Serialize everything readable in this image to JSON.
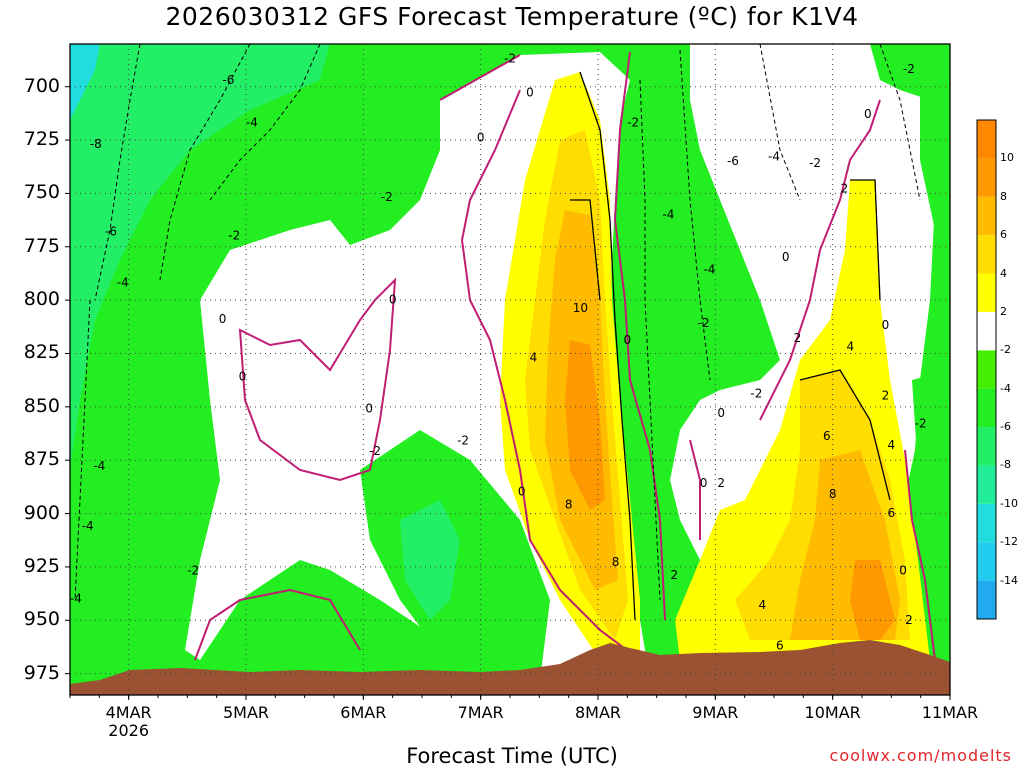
{
  "chart_data": {
    "type": "heatmap",
    "title": "2026030312 GFS Forecast Temperature (ºC) for K1V4",
    "xlabel": "Forecast Time (UTC)",
    "ylabel": "",
    "x_ticks": [
      {
        "label": "4MAR",
        "sub": "2026",
        "day": 4
      },
      {
        "label": "5MAR",
        "sub": "",
        "day": 5
      },
      {
        "label": "6MAR",
        "sub": "",
        "day": 6
      },
      {
        "label": "7MAR",
        "sub": "",
        "day": 7
      },
      {
        "label": "8MAR",
        "sub": "",
        "day": 8
      },
      {
        "label": "9MAR",
        "sub": "",
        "day": 9
      },
      {
        "label": "10MAR",
        "sub": "",
        "day": 10
      },
      {
        "label": "11MAR",
        "sub": "",
        "day": 11
      }
    ],
    "xlim": [
      3.5,
      11.0
    ],
    "y_ticks": [
      700,
      725,
      750,
      775,
      800,
      825,
      850,
      875,
      900,
      925,
      950,
      975
    ],
    "ylim": [
      680,
      985
    ],
    "y_inverted": true,
    "grid": true,
    "colorbar": {
      "levels": [
        -16,
        -14,
        -12,
        -10,
        -8,
        -6,
        -4,
        -2,
        2,
        4,
        6,
        8,
        10,
        12
      ],
      "labels": [
        "-14",
        "-12",
        "-10",
        "-8",
        "-6",
        "-4",
        "-2",
        "2",
        "4",
        "6",
        "8",
        "10"
      ],
      "colors": [
        "#22aaee",
        "#22ccee",
        "#22dddd",
        "#22ee99",
        "#22ee66",
        "#22ee22",
        "#44ee00",
        "#ffffff",
        "#ffff00",
        "#ffdd00",
        "#ffbb00",
        "#ff9900",
        "#ff8800"
      ]
    },
    "contour_labels": [
      {
        "text": "-6",
        "day": 4.85,
        "p": 697
      },
      {
        "text": "-8",
        "day": 3.72,
        "p": 727
      },
      {
        "text": "-6",
        "day": 3.85,
        "p": 768
      },
      {
        "text": "-4",
        "day": 3.95,
        "p": 792
      },
      {
        "text": "-4",
        "day": 5.05,
        "p": 717
      },
      {
        "text": "-2",
        "day": 4.9,
        "p": 770
      },
      {
        "text": "-2",
        "day": 6.2,
        "p": 752
      },
      {
        "text": "-2",
        "day": 7.25,
        "p": 687
      },
      {
        "text": "0",
        "day": 7.42,
        "p": 703
      },
      {
        "text": "0",
        "day": 7.0,
        "p": 724
      },
      {
        "text": "0",
        "day": 4.8,
        "p": 809
      },
      {
        "text": "0",
        "day": 4.97,
        "p": 836
      },
      {
        "text": "0",
        "day": 6.25,
        "p": 800
      },
      {
        "text": "0",
        "day": 6.05,
        "p": 851
      },
      {
        "text": "-2",
        "day": 6.1,
        "p": 871
      },
      {
        "text": "-2",
        "day": 6.85,
        "p": 866
      },
      {
        "text": "-4",
        "day": 3.75,
        "p": 878
      },
      {
        "text": "-4",
        "day": 3.65,
        "p": 906
      },
      {
        "text": "-4",
        "day": 3.55,
        "p": 940
      },
      {
        "text": "-2",
        "day": 4.55,
        "p": 927
      },
      {
        "text": "-2",
        "day": 8.3,
        "p": 717
      },
      {
        "text": "-4",
        "day": 8.6,
        "p": 760
      },
      {
        "text": "-4",
        "day": 8.95,
        "p": 786
      },
      {
        "text": "-6",
        "day": 9.15,
        "p": 735
      },
      {
        "text": "-4",
        "day": 9.5,
        "p": 733
      },
      {
        "text": "-2",
        "day": 9.85,
        "p": 736
      },
      {
        "text": "-2",
        "day": 10.65,
        "p": 692
      },
      {
        "text": "0",
        "day": 10.3,
        "p": 713
      },
      {
        "text": "0",
        "day": 9.6,
        "p": 780
      },
      {
        "text": "2",
        "day": 10.1,
        "p": 748
      },
      {
        "text": "10",
        "day": 7.85,
        "p": 804
      },
      {
        "text": "4",
        "day": 7.45,
        "p": 827
      },
      {
        "text": "0",
        "day": 8.25,
        "p": 819
      },
      {
        "text": "-2",
        "day": 8.9,
        "p": 811
      },
      {
        "text": "2",
        "day": 9.7,
        "p": 818
      },
      {
        "text": "4",
        "day": 10.15,
        "p": 822
      },
      {
        "text": "0",
        "day": 10.45,
        "p": 812
      },
      {
        "text": "-2",
        "day": 9.35,
        "p": 844
      },
      {
        "text": "2",
        "day": 10.45,
        "p": 845
      },
      {
        "text": "0",
        "day": 9.05,
        "p": 853
      },
      {
        "text": "6",
        "day": 9.95,
        "p": 864
      },
      {
        "text": "4",
        "day": 10.5,
        "p": 868
      },
      {
        "text": "-2",
        "day": 10.75,
        "p": 858
      },
      {
        "text": "0",
        "day": 7.35,
        "p": 890
      },
      {
        "text": "0",
        "day": 8.9,
        "p": 886
      },
      {
        "text": "2",
        "day": 9.05,
        "p": 886
      },
      {
        "text": "8",
        "day": 7.75,
        "p": 896
      },
      {
        "text": "8",
        "day": 10.0,
        "p": 891
      },
      {
        "text": "6",
        "day": 10.5,
        "p": 900
      },
      {
        "text": "8",
        "day": 8.15,
        "p": 923
      },
      {
        "text": "2",
        "day": 8.65,
        "p": 929
      },
      {
        "text": "0",
        "day": 10.6,
        "p": 927
      },
      {
        "text": "4",
        "day": 9.4,
        "p": 943
      },
      {
        "text": "2",
        "day": 10.65,
        "p": 950
      },
      {
        "text": "6",
        "day": 9.55,
        "p": 962
      }
    ]
  },
  "credit": "coolwx.com/modelts"
}
